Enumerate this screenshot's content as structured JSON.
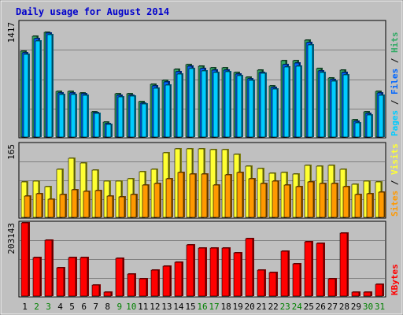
{
  "colors": {
    "background": "#c0c0c0",
    "plot_bg": "#c0c0c0",
    "title": "#0000cc",
    "grid": "#808080",
    "pages": "#00ccff",
    "pages_dark": "#006080",
    "files": "#0066ff",
    "files_dark": "#003080",
    "hits": "#33aa66",
    "hits_dark": "#185030",
    "visits": "#ffff33",
    "visits_dark": "#808010",
    "sites": "#ff9900",
    "sites_dark": "#804c00",
    "kbytes": "#ff0000",
    "kbytes_dark": "#800000",
    "weekday": "#000000",
    "weekend": "#008000"
  },
  "chart_data": {
    "type": "bar",
    "title": "Daily usage for August 2014",
    "categories": [
      "1",
      "2",
      "3",
      "4",
      "5",
      "6",
      "7",
      "8",
      "9",
      "10",
      "11",
      "12",
      "13",
      "14",
      "15",
      "16",
      "17",
      "18",
      "19",
      "20",
      "21",
      "22",
      "23",
      "24",
      "25",
      "26",
      "27",
      "28",
      "29",
      "30",
      "31"
    ],
    "weekend_days": [
      "2",
      "3",
      "9",
      "10",
      "16",
      "17",
      "23",
      "24",
      "30",
      "31"
    ],
    "panels": [
      {
        "name": "requests",
        "ymax_label": "1417",
        "ymax": 1417,
        "legend": [
          "Pages",
          "Files",
          "Hits"
        ],
        "series": [
          {
            "name": "Hits",
            "values": [
              1060,
              1240,
              1290,
              570,
              570,
              550,
              320,
              190,
              540,
              540,
              440,
              660,
              700,
              840,
              900,
              880,
              860,
              860,
              800,
              740,
              830,
              640,
              940,
              940,
              1200,
              850,
              730,
              830,
              220,
              320,
              570
            ]
          },
          {
            "name": "Files",
            "values": [
              1040,
              1210,
              1280,
              550,
              550,
              540,
              310,
              170,
              520,
              520,
              420,
              640,
              680,
              810,
              880,
              850,
              830,
              830,
              780,
              720,
              800,
              620,
              900,
              920,
              1170,
              820,
              710,
              800,
              200,
              300,
              550
            ]
          },
          {
            "name": "Pages",
            "values": [
              1020,
              1190,
              1260,
              530,
              530,
              520,
              300,
              160,
              500,
              510,
              410,
              610,
              650,
              780,
              850,
              820,
              800,
              810,
              760,
              700,
              790,
              600,
              870,
              880,
              1140,
              800,
              690,
              770,
              180,
              280,
              520
            ]
          }
        ]
      },
      {
        "name": "visitors",
        "ymax_label": "165",
        "ymax": 165,
        "legend": [
          "Sites",
          "Visits"
        ],
        "series": [
          {
            "name": "Visits",
            "values": [
              80,
              82,
              70,
              108,
              133,
              122,
              107,
              83,
              82,
              88,
              103,
              108,
              145,
              155,
              155,
              154,
              153,
              153,
              143,
              115,
              110,
              100,
              102,
              98,
              117,
              115,
              117,
              108,
              75,
              83,
              80
            ]
          },
          {
            "name": "Sites",
            "values": [
              50,
              55,
              42,
              52,
              63,
              60,
              62,
              50,
              47,
              52,
              73,
              78,
              88,
              102,
              98,
              98,
              73,
              97,
              102,
              87,
              77,
              82,
              73,
              70,
              80,
              77,
              77,
              70,
              53,
              55,
              58
            ]
          }
        ]
      },
      {
        "name": "kbytes",
        "ymax_label": "203143",
        "ymax": 203143,
        "legend": [
          "KBytes"
        ],
        "series": [
          {
            "name": "KBytes",
            "values": [
              203143,
              107000,
              155000,
              81000,
              108000,
              108000,
              32000,
              14000,
              106000,
              63000,
              49000,
              74000,
              84000,
              96000,
              142000,
              133000,
              135000,
              135000,
              122000,
              160000,
              74000,
              67000,
              125000,
              91000,
              151000,
              146000,
              50000,
              176000,
              14000,
              14000,
              34000
            ]
          }
        ]
      }
    ]
  }
}
